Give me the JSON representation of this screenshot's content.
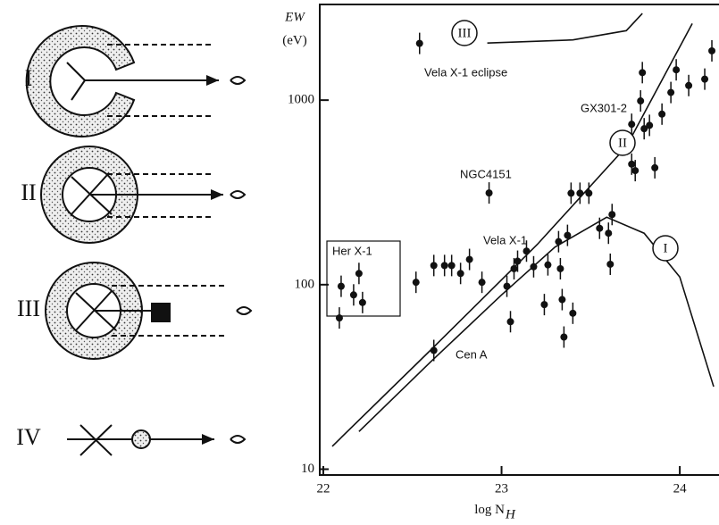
{
  "diagram": {
    "labels": [
      "I",
      "II",
      "III",
      "IV"
    ]
  },
  "chart_data": {
    "type": "scatter",
    "ylabel": "EW",
    "yunit": "(eV)",
    "xlabel": "log N",
    "xlabel_sub": "H",
    "xlim": [
      21.98,
      24.22
    ],
    "xticks": [
      22,
      23,
      24
    ],
    "ylim": [
      9.3,
      3300
    ],
    "yticks": [
      10,
      100,
      1000
    ],
    "ylog": true,
    "color": "#111",
    "x": [
      22.1,
      22.17,
      22.2,
      22.09,
      22.22,
      22.52,
      22.62,
      22.68,
      22.72,
      22.77,
      22.82,
      22.89,
      22.62,
      23.03,
      23.07,
      23.09,
      23.14,
      23.18,
      23.26,
      23.32,
      23.37,
      23.33,
      23.39,
      23.44,
      23.49,
      23.05,
      23.24,
      23.34,
      23.4,
      23.35,
      23.55,
      23.62,
      23.6,
      23.61,
      23.73,
      23.73,
      23.75,
      23.78,
      23.8,
      23.83,
      23.86,
      23.9,
      23.95,
      23.98,
      24.05,
      24.14,
      24.18,
      23.79,
      22.54,
      22.93
    ],
    "values": [
      98,
      88,
      115,
      66,
      80,
      103,
      127,
      127,
      127,
      115,
      137,
      103,
      44,
      98,
      122,
      134,
      152,
      125,
      128,
      171,
      185,
      122,
      313,
      313,
      313,
      63,
      78,
      83,
      70,
      52,
      202,
      240,
      190,
      129,
      740,
      450,
      415,
      990,
      700,
      730,
      430,
      840,
      1100,
      1460,
      1200,
      1300,
      1850,
      1410,
      2030,
      314
    ],
    "curves": [
      {
        "name": "I",
        "x": [
          22.2,
          22.6,
          23.0,
          23.3,
          23.59,
          23.8,
          24.0,
          24.19
        ],
        "values": [
          16,
          38,
          88,
          160,
          232,
          190,
          110,
          28
        ]
      },
      {
        "name": "II",
        "x": [
          22.05,
          22.6,
          23.2,
          23.7,
          24.07
        ],
        "values": [
          13.3,
          44,
          165,
          560,
          2600
        ]
      },
      {
        "name": "III",
        "x": [
          22.92,
          23.4,
          23.7,
          23.79
        ],
        "values": [
          2040,
          2120,
          2380,
          2950
        ]
      }
    ],
    "annotations": [
      "Vela X-1 eclipse",
      "GX301-2",
      "NGC4151",
      "Her X-1",
      "Vela X-1",
      "Cen A"
    ]
  }
}
